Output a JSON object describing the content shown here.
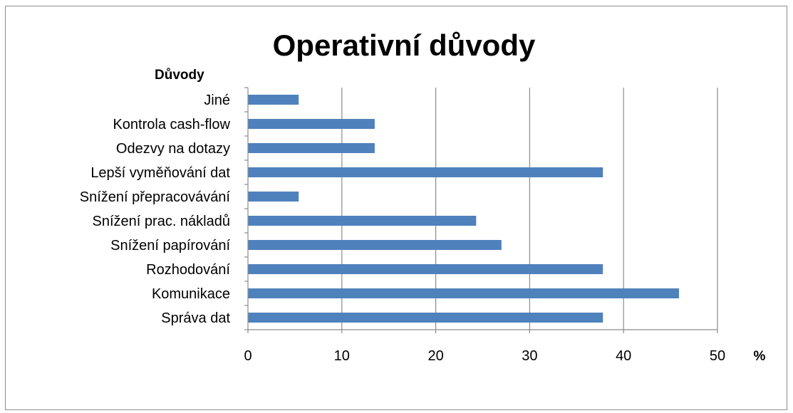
{
  "chart_data": {
    "type": "bar",
    "orientation": "horizontal",
    "title": "Operativní důvody",
    "ylabel": "Důvody",
    "xlabel": "%",
    "categories": [
      "Jiné",
      "Kontrola cash-flow",
      "Odezvy na dotazy",
      "Lepší vyměňování dat",
      "Snížení přepracovávání",
      "Snížení prac. nákladů",
      "Snížení papírování",
      "Rozhodování",
      "Komunikace",
      "Správa dat"
    ],
    "values": [
      5.4,
      13.5,
      13.5,
      37.8,
      5.4,
      24.3,
      27.0,
      37.8,
      45.9,
      37.8
    ],
    "xlim": [
      0,
      50
    ],
    "xticks": [
      "0",
      "10",
      "20",
      "30",
      "40",
      "50"
    ],
    "grid": true,
    "legend": "none",
    "bar_color": "#4f81bd"
  }
}
